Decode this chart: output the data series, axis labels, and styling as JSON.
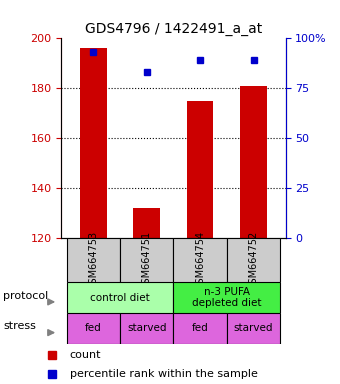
{
  "title": "GDS4796 / 1422491_a_at",
  "samples": [
    "GSM664753",
    "GSM664751",
    "GSM664754",
    "GSM664752"
  ],
  "bar_values": [
    196,
    132,
    175,
    181
  ],
  "bar_bottom": 120,
  "bar_color": "#cc0000",
  "dot_values": [
    93,
    83,
    89,
    89
  ],
  "dot_color": "#0000cc",
  "left_ylim": [
    120,
    200
  ],
  "left_yticks": [
    120,
    140,
    160,
    180,
    200
  ],
  "right_ylim": [
    0,
    100
  ],
  "right_yticks": [
    0,
    25,
    50,
    75,
    100
  ],
  "right_yticklabels": [
    "0",
    "25",
    "50",
    "75",
    "100%"
  ],
  "grid_values": [
    140,
    160,
    180
  ],
  "protocol_labels": [
    "control diet",
    "n-3 PUFA\ndepleted diet"
  ],
  "protocol_colors": [
    "#aaffaa",
    "#44ee44"
  ],
  "stress_labels": [
    "fed",
    "starved",
    "fed",
    "starved"
  ],
  "stress_color": "#dd66dd",
  "sample_bg_color": "#cccccc",
  "row_label_protocol": "protocol",
  "row_label_stress": "stress",
  "legend_count_color": "#cc0000",
  "legend_pct_color": "#0000cc",
  "legend_count_label": "count",
  "legend_pct_label": "percentile rank within the sample"
}
